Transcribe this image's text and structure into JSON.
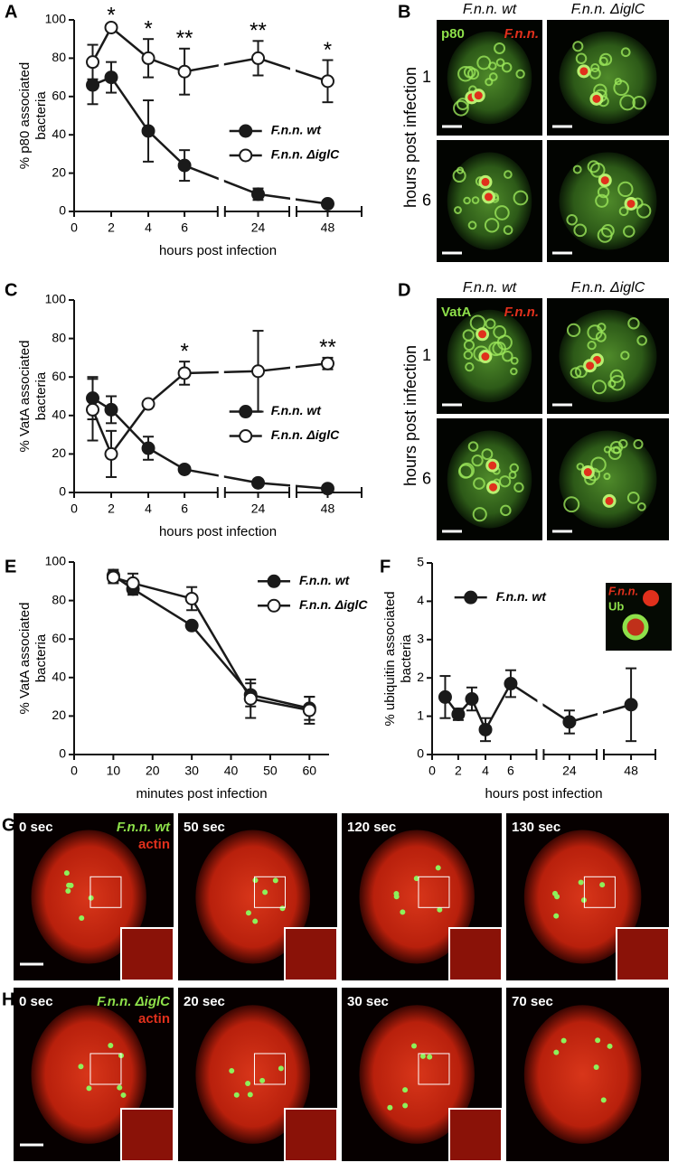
{
  "chart_data": [
    {
      "panel": "A",
      "type": "line",
      "ylabel": [
        "% p80 associated",
        "bacteria"
      ],
      "xlabel": "hours post infection",
      "x": [
        1,
        2,
        4,
        6,
        24,
        48
      ],
      "xlim": [
        0,
        48
      ],
      "xticks": [
        0,
        2,
        4,
        6,
        24,
        48
      ],
      "x_axis_broken": true,
      "ylim": [
        0,
        100
      ],
      "yticks": [
        0,
        20,
        40,
        60,
        80,
        100
      ],
      "legend": "center right",
      "series": [
        {
          "name": "F.n.n. wt",
          "color": "#1a1a1a",
          "marker_fill": "#1a1a1a",
          "values": [
            66,
            70,
            42,
            24,
            9,
            4
          ],
          "errors": [
            10,
            8,
            16,
            8,
            3,
            1
          ]
        },
        {
          "name": "F.n.n. ΔiglC",
          "color": "#1a1a1a",
          "marker_fill": "#ffffff",
          "values": [
            78,
            96,
            80,
            73,
            80,
            68
          ],
          "errors": [
            9,
            1,
            10,
            12,
            9,
            11
          ]
        }
      ],
      "annotations": [
        {
          "x": 2,
          "text": "*"
        },
        {
          "x": 4,
          "text": "*"
        },
        {
          "x": 6,
          "text": "**"
        },
        {
          "x": 24,
          "text": "**"
        },
        {
          "x": 48,
          "text": "*"
        }
      ]
    },
    {
      "panel": "C",
      "type": "line",
      "ylabel": [
        "% VatA associated",
        "bacteria"
      ],
      "xlabel": "hours post infection",
      "x": [
        1,
        2,
        4,
        6,
        24,
        48
      ],
      "xlim": [
        0,
        48
      ],
      "xticks": [
        0,
        2,
        4,
        6,
        24,
        48
      ],
      "x_axis_broken": true,
      "ylim": [
        0,
        100
      ],
      "yticks": [
        0,
        20,
        40,
        60,
        80,
        100
      ],
      "legend": "center right",
      "series": [
        {
          "name": "F.n.n. wt",
          "color": "#1a1a1a",
          "marker_fill": "#1a1a1a",
          "values": [
            49,
            43,
            23,
            12,
            5,
            2
          ],
          "errors": [
            11,
            7,
            6,
            1,
            1,
            1
          ]
        },
        {
          "name": "F.n.n. ΔiglC",
          "color": "#1a1a1a",
          "marker_fill": "#ffffff",
          "values": [
            43,
            20,
            46,
            62,
            63,
            67
          ],
          "errors": [
            16,
            12,
            1,
            6,
            21,
            3
          ]
        }
      ],
      "annotations": [
        {
          "x": 6,
          "text": "*"
        },
        {
          "x": 48,
          "text": "**"
        }
      ]
    },
    {
      "panel": "E",
      "type": "line",
      "ylabel": [
        "% VatA associated",
        "bacteria"
      ],
      "xlabel": "minutes post infection",
      "x": [
        10,
        15,
        30,
        45,
        60
      ],
      "xlim": [
        0,
        65
      ],
      "xticks": [
        0,
        10,
        20,
        30,
        40,
        50,
        60
      ],
      "x_axis_broken": false,
      "ylim": [
        0,
        100
      ],
      "yticks": [
        0,
        20,
        40,
        60,
        80,
        100
      ],
      "legend": "upper right",
      "series": [
        {
          "name": "F.n.n. wt",
          "color": "#1a1a1a",
          "marker_fill": "#1a1a1a",
          "values": [
            93,
            86,
            67,
            31,
            24
          ],
          "errors": [
            3,
            3,
            1,
            6,
            6
          ]
        },
        {
          "name": "F.n.n. ΔiglC",
          "color": "#1a1a1a",
          "marker_fill": "#ffffff",
          "values": [
            92,
            89,
            81,
            29,
            23
          ],
          "errors": [
            3,
            5,
            6,
            10,
            7
          ]
        }
      ],
      "annotations": []
    },
    {
      "panel": "F",
      "type": "line",
      "ylabel": [
        "% ubiquitin associated",
        "bacteria"
      ],
      "xlabel": "hours post infection",
      "x": [
        1,
        2,
        3,
        4,
        6,
        24,
        48
      ],
      "xlim": [
        0,
        48
      ],
      "xticks": [
        0,
        2,
        4,
        6,
        24,
        48
      ],
      "x_axis_broken": true,
      "ylim": [
        0,
        5
      ],
      "yticks": [
        0,
        1,
        2,
        3,
        4,
        5
      ],
      "legend": "upper left",
      "series": [
        {
          "name": "F.n.n. wt",
          "color": "#1a1a1a",
          "marker_fill": "#1a1a1a",
          "values": [
            1.5,
            1.05,
            1.45,
            0.65,
            1.85,
            0.85,
            1.3
          ],
          "errors": [
            0.55,
            0.15,
            0.3,
            0.3,
            0.35,
            0.3,
            0.95
          ]
        }
      ],
      "annotations": [],
      "inset_labels": [
        "F.n.n.",
        "Ub"
      ]
    }
  ],
  "micrographs": [
    {
      "panel": "B",
      "columns": [
        "F.n.n. wt",
        "F.n.n. ΔiglC"
      ],
      "row_title": "hours post infection",
      "rows": [
        "1",
        "6"
      ],
      "labels": [
        "p80",
        "F.n.n."
      ]
    },
    {
      "panel": "D",
      "columns": [
        "F.n.n. wt",
        "F.n.n. ΔiglC"
      ],
      "row_title": "hours post infection",
      "rows": [
        "1",
        "6"
      ],
      "labels": [
        "VatA",
        "F.n.n."
      ]
    },
    {
      "panel": "G",
      "frames": [
        "0 sec",
        "50 sec",
        "120 sec",
        "130 sec"
      ],
      "labels": [
        "F.n.n. wt",
        "actin"
      ]
    },
    {
      "panel": "H",
      "frames": [
        "0 sec",
        "20 sec",
        "30 sec",
        "70 sec"
      ],
      "labels": [
        "F.n.n. ΔiglC",
        "actin"
      ]
    }
  ]
}
